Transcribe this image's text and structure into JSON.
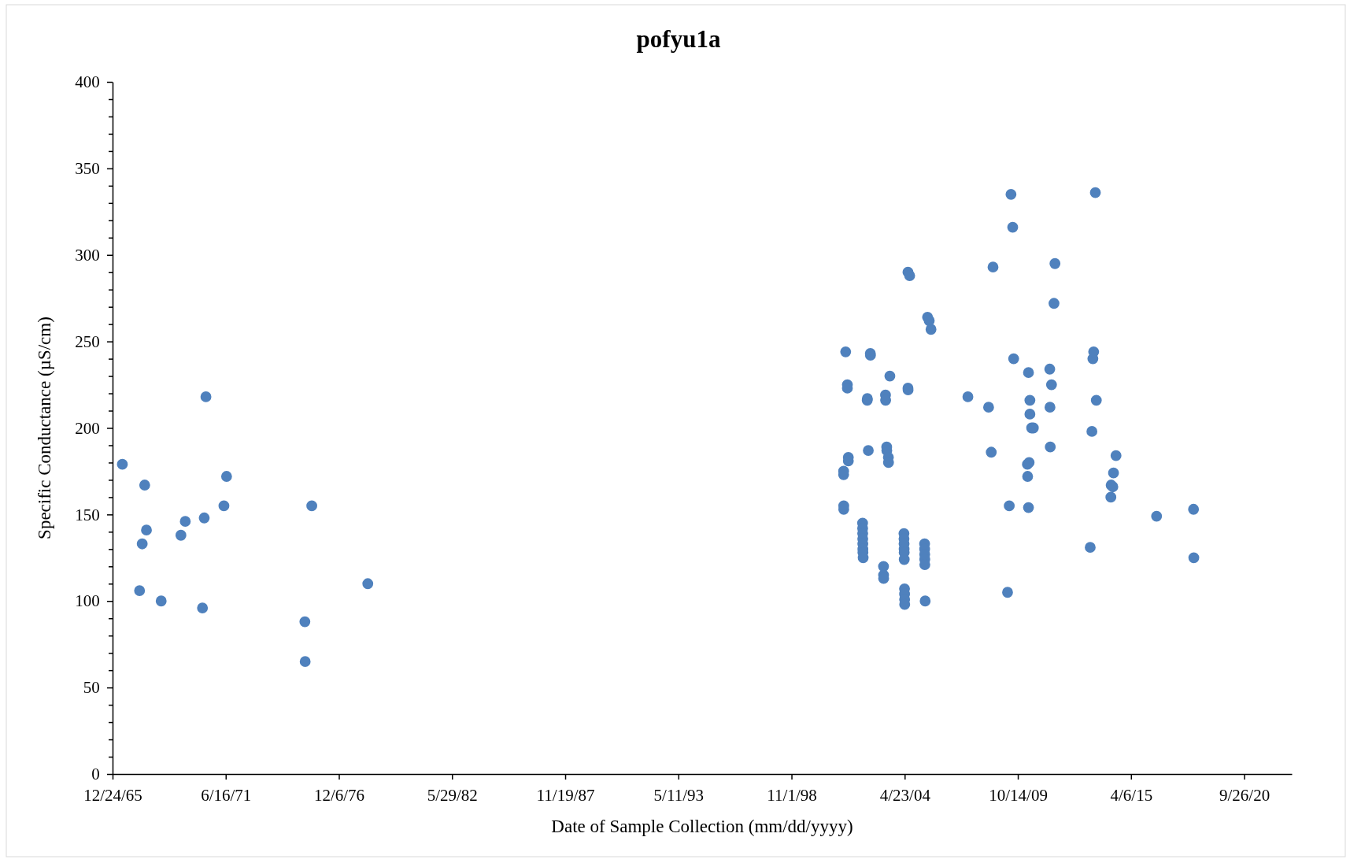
{
  "chart_data": {
    "type": "scatter",
    "title": "pofyu1a",
    "xlabel": "Date of Sample Collection (mm/dd/yyyy)",
    "ylabel": "Specific Conductance (µS/cm)",
    "xlim": [
      "1965-12-24",
      "2023-01-15"
    ],
    "xticks": [
      {
        "value": "1965-12-24",
        "label": "12/24/65"
      },
      {
        "value": "1971-06-16",
        "label": "6/16/71"
      },
      {
        "value": "1976-12-06",
        "label": "12/6/76"
      },
      {
        "value": "1982-05-29",
        "label": "5/29/82"
      },
      {
        "value": "1987-11-19",
        "label": "11/19/87"
      },
      {
        "value": "1993-05-11",
        "label": "5/11/93"
      },
      {
        "value": "1998-11-01",
        "label": "11/1/98"
      },
      {
        "value": "2004-04-23",
        "label": "4/23/04"
      },
      {
        "value": "2009-10-14",
        "label": "10/14/09"
      },
      {
        "value": "2015-04-06",
        "label": "4/6/15"
      },
      {
        "value": "2020-09-26",
        "label": "9/26/20"
      }
    ],
    "ylim": [
      0,
      400
    ],
    "yticks": [
      0,
      {
        "value": 10,
        "label": null
      },
      {
        "value": 20,
        "label": null
      },
      {
        "value": 30,
        "label": null
      },
      {
        "value": 40,
        "label": null
      },
      50,
      {
        "value": 60,
        "label": null
      },
      {
        "value": 70,
        "label": null
      },
      {
        "value": 80,
        "label": null
      },
      {
        "value": 90,
        "label": null
      },
      100,
      {
        "value": 110,
        "label": null
      },
      {
        "value": 120,
        "label": null
      },
      {
        "value": 130,
        "label": null
      },
      {
        "value": 140,
        "label": null
      },
      150,
      {
        "value": 160,
        "label": null
      },
      {
        "value": 170,
        "label": null
      },
      {
        "value": 180,
        "label": null
      },
      {
        "value": 190,
        "label": null
      },
      200,
      {
        "value": 210,
        "label": null
      },
      {
        "value": 220,
        "label": null
      },
      {
        "value": 230,
        "label": null
      },
      {
        "value": 240,
        "label": null
      },
      250,
      {
        "value": 260,
        "label": null
      },
      {
        "value": 270,
        "label": null
      },
      {
        "value": 280,
        "label": null
      },
      {
        "value": 290,
        "label": null
      },
      300,
      {
        "value": 310,
        "label": null
      },
      {
        "value": 320,
        "label": null
      },
      {
        "value": 330,
        "label": null
      },
      {
        "value": 340,
        "label": null
      },
      350,
      {
        "value": 360,
        "label": null
      },
      {
        "value": 370,
        "label": null
      },
      {
        "value": 380,
        "label": null
      },
      {
        "value": 390,
        "label": null
      },
      400
    ],
    "grid": false,
    "marker": "circle",
    "series": [
      {
        "color": "#4f81bd",
        "x": [
          "1966-06-15",
          "1967-07-15",
          "1967-06-01",
          "1967-08-15",
          "1967-04-15",
          "1968-05-01",
          "1969-04-15",
          "1969-07-01",
          "1970-05-01",
          "1970-06-01",
          "1970-07-01",
          "1971-05-15",
          "1971-07-01",
          "1975-04-15",
          "1975-04-20",
          "1975-08-15",
          "1978-05-01",
          "2001-05-10",
          "2001-05-10",
          "2001-05-12",
          "2001-05-12",
          "2001-06-15",
          "2001-07-15",
          "2001-07-15",
          "2001-08-01",
          "2001-08-01",
          "2002-07-01",
          "2002-07-03",
          "2002-07-20",
          "2002-08-25",
          "2002-08-27",
          "2002-04-10",
          "2002-04-11",
          "2002-04-12",
          "2002-04-13",
          "2002-04-14",
          "2002-04-15",
          "2002-04-16",
          "2002-04-20",
          "2003-04-15",
          "2003-04-16",
          "2003-04-17",
          "2003-05-20",
          "2003-05-22",
          "2003-06-10",
          "2003-06-12",
          "2003-07-10",
          "2003-07-12",
          "2003-08-05",
          "2004-04-10",
          "2004-04-11",
          "2004-04-12",
          "2004-04-13",
          "2004-04-14",
          "2004-04-15",
          "2004-04-20",
          "2004-04-21",
          "2004-04-22",
          "2004-04-23",
          "2004-06-20",
          "2004-06-22",
          "2004-06-20",
          "2004-07-20",
          "2005-04-10",
          "2005-04-11",
          "2005-04-12",
          "2005-04-13",
          "2005-04-14",
          "2005-04-20",
          "2005-06-01",
          "2005-07-01",
          "2005-08-01",
          "2007-05-15",
          "2008-05-15",
          "2008-07-01",
          "2008-08-01",
          "2009-04-15",
          "2009-05-15",
          "2009-06-15",
          "2009-07-15",
          "2009-08-01",
          "2010-04-01",
          "2010-04-05",
          "2010-04-20",
          "2010-04-20",
          "2010-05-01",
          "2010-05-15",
          "2010-05-15",
          "2010-06-15",
          "2010-07-15",
          "2011-05-01",
          "2011-05-05",
          "2011-05-10",
          "2011-06-01",
          "2011-07-15",
          "2011-08-01",
          "2013-04-15",
          "2013-05-15",
          "2013-06-01",
          "2013-06-15",
          "2013-07-15",
          "2013-08-01",
          "2014-04-15",
          "2014-04-20",
          "2014-05-20",
          "2014-06-01",
          "2014-07-15",
          "2016-07-01",
          "2018-04-15",
          "2018-04-20"
        ],
        "values": [
          179,
          167,
          133,
          141,
          106,
          100,
          138,
          146,
          96,
          148,
          218,
          155,
          172,
          88,
          65,
          155,
          110,
          173,
          175,
          153,
          155,
          244,
          225,
          223,
          183,
          181,
          216,
          217,
          187,
          243,
          242,
          145,
          142,
          139,
          136,
          133,
          130,
          128,
          125,
          120,
          115,
          113,
          219,
          216,
          189,
          187,
          183,
          180,
          230,
          139,
          136,
          133,
          130,
          128,
          124,
          107,
          104,
          101,
          98,
          223,
          222,
          290,
          288,
          133,
          130,
          127,
          124,
          121,
          100,
          264,
          262,
          257,
          218,
          212,
          186,
          293,
          105,
          155,
          335,
          316,
          240,
          179,
          172,
          154,
          232,
          180,
          216,
          208,
          200,
          200,
          234,
          212,
          189,
          225,
          272,
          295,
          131,
          198,
          240,
          244,
          336,
          216,
          160,
          167,
          166,
          174,
          184,
          149,
          153,
          125
        ]
      }
    ]
  }
}
